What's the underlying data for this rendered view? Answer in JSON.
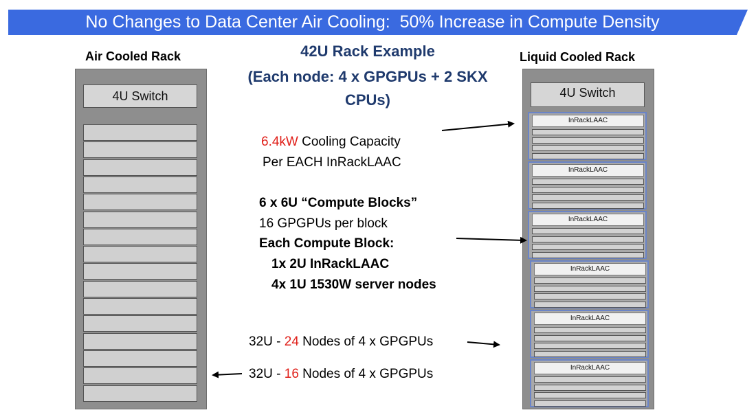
{
  "banner": {
    "title": "No Changes to Data Center Air Cooling:  50% Increase in Compute Density"
  },
  "air_rack": {
    "title": "Air Cooled Rack",
    "switch_label": "4U Switch",
    "slot_count": 16
  },
  "liquid_rack": {
    "title": "Liquid Cooled Rack",
    "switch_label": "4U Switch",
    "block_label": "InRackLAAC",
    "block_count": 6,
    "nodes_per_block": 4
  },
  "center": {
    "title_line1": "42U Rack Example",
    "title_line2": "(Each node: 4 x GPGPUs + 2 SKX",
    "title_line3": "CPUs)",
    "cooling_value": "6.4kW",
    "cooling_rest": " Cooling Capacity",
    "cooling_line2": "Per EACH InRackLAAC",
    "blocks_line": "6 x 6U “Compute Blocks”",
    "gpus_line": "16 GPGPUs per block",
    "each_block": "Each Compute Block:",
    "block_item1": "1x 2U InRackLAAC",
    "block_item2": "4x 1U 1530W server nodes",
    "liquid_nodes_prefix": "32U - ",
    "liquid_nodes_count": "24",
    "liquid_nodes_suffix": " Nodes of 4 x GPGPUs",
    "air_nodes_prefix": "32U - ",
    "air_nodes_count": "16",
    "air_nodes_suffix": " Nodes of 4 x GPGPUs"
  },
  "colors": {
    "banner": "#3a6ae0",
    "title_blue": "#1f3a6d",
    "highlight_red": "#e0201a",
    "block_border": "#6a84c8"
  }
}
